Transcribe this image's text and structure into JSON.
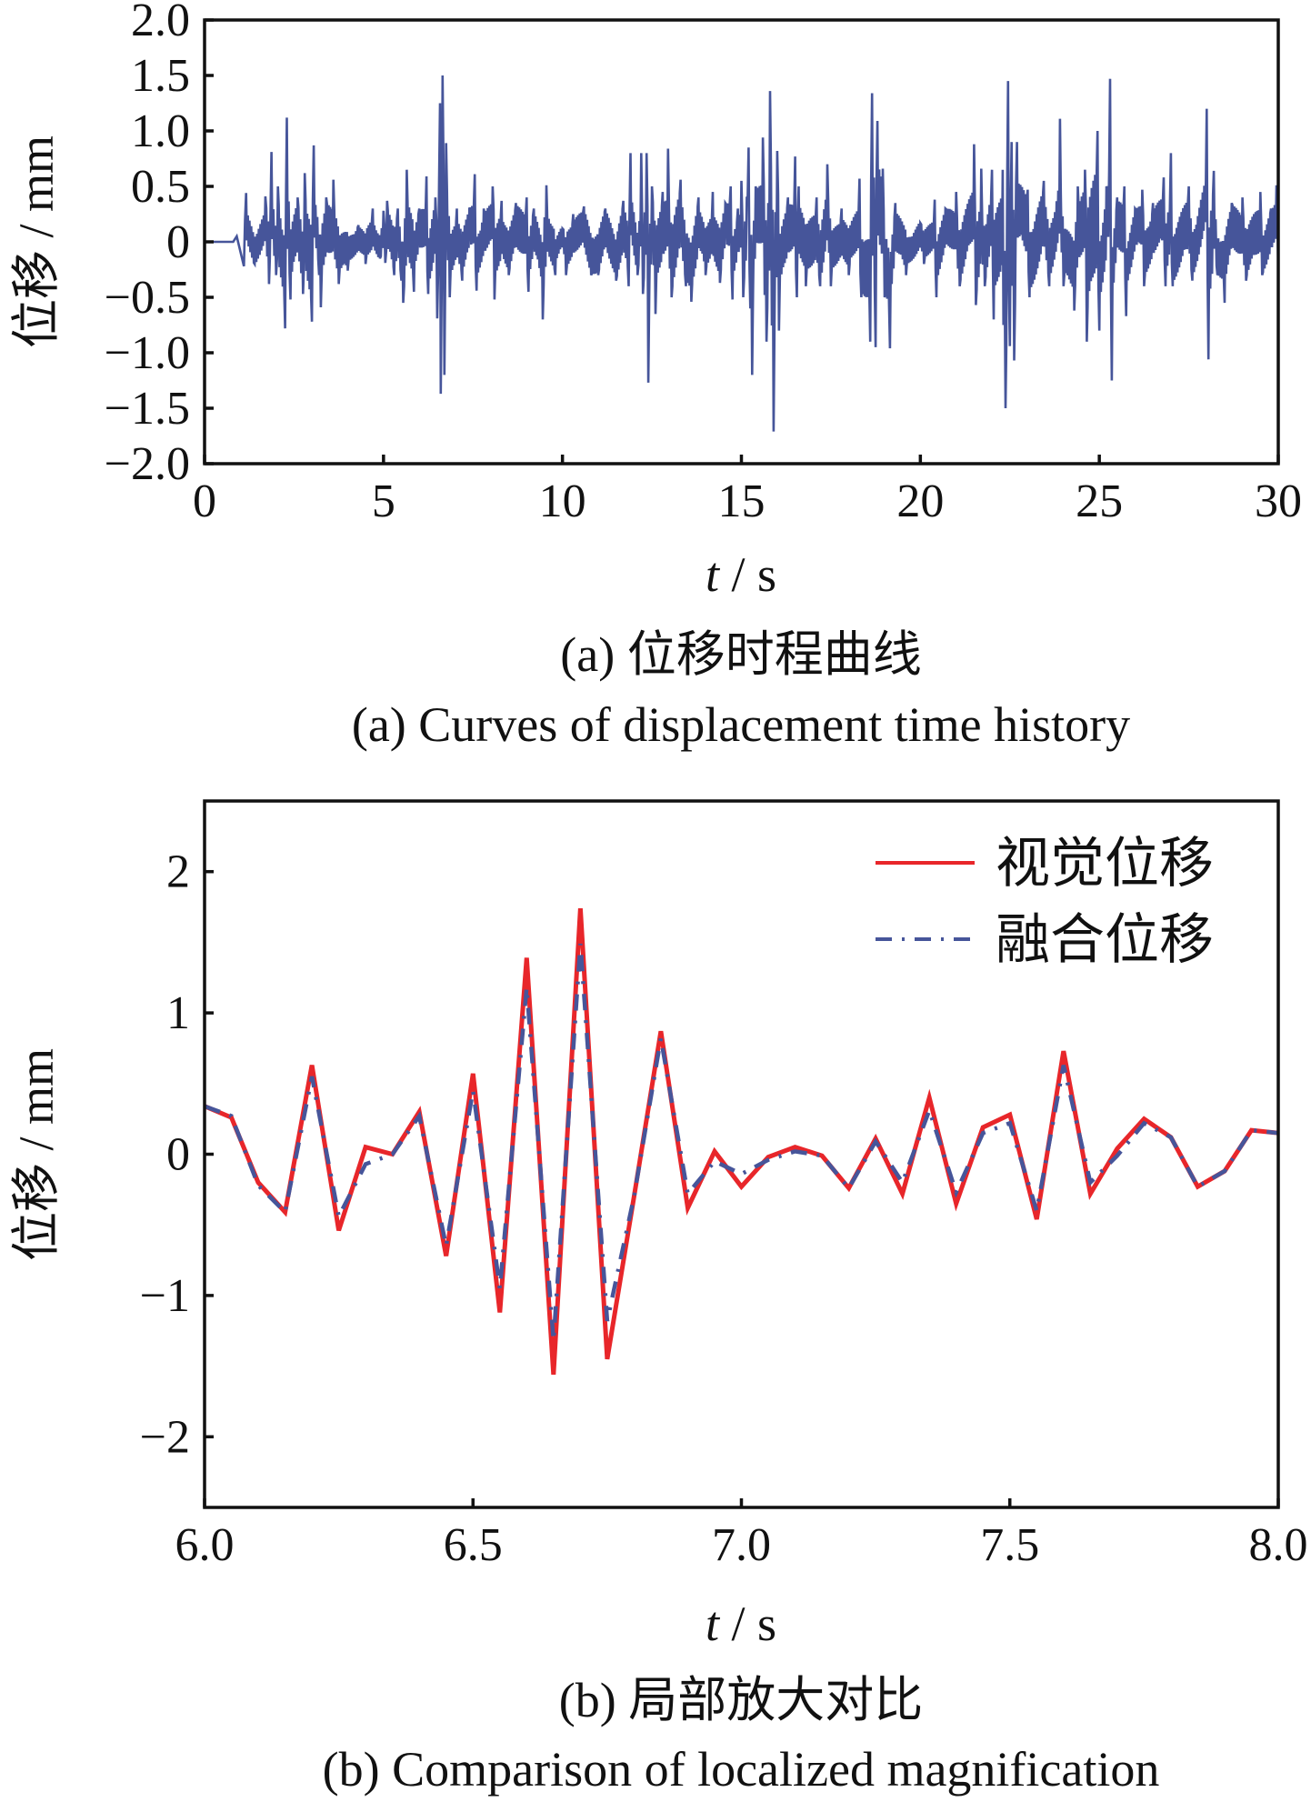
{
  "chart_data": [
    {
      "type": "line",
      "xlabel_var": "t",
      "xlabel_unit": " / s",
      "ylabel": "位移 / mm",
      "xlim": [
        0,
        30
      ],
      "ylim": [
        -2.0,
        2.0
      ],
      "xticks": [
        0,
        5,
        10,
        15,
        20,
        25,
        30
      ],
      "xtick_labels": [
        "0",
        "5",
        "10",
        "15",
        "20",
        "25",
        "30"
      ],
      "yticks": [
        2.0,
        1.5,
        1.0,
        0.5,
        0,
        -0.5,
        -1.0,
        -1.5,
        -2.0
      ],
      "ytick_labels": [
        "2.0",
        "1.5",
        "1.0",
        "0.5",
        "0",
        "−0.5",
        "−1.0",
        "−1.5",
        "−2.0"
      ],
      "grid": false,
      "color": "#46559a",
      "caption_cn": "(a)  位移时程曲线",
      "caption_en": "(a)  Curves of displacement time history",
      "series_peaks": [
        [
          0,
          0
        ],
        [
          0.8,
          0
        ],
        [
          0.9,
          0.05
        ],
        [
          1.1,
          -0.22
        ],
        [
          1.16,
          0.44
        ],
        [
          1.4,
          -0.2
        ],
        [
          1.7,
          0.41
        ],
        [
          1.8,
          -0.38
        ],
        [
          1.87,
          0.81
        ],
        [
          2.0,
          -0.3
        ],
        [
          2.05,
          0.5
        ],
        [
          2.25,
          -0.78
        ],
        [
          2.3,
          1.12
        ],
        [
          2.4,
          -0.52
        ],
        [
          2.6,
          0.4
        ],
        [
          2.75,
          -0.47
        ],
        [
          2.8,
          0.62
        ],
        [
          3.0,
          -0.72
        ],
        [
          3.05,
          0.87
        ],
        [
          3.2,
          -0.3
        ],
        [
          3.25,
          -0.59
        ],
        [
          3.4,
          0.4
        ],
        [
          3.6,
          0.56
        ],
        [
          3.75,
          -0.38
        ],
        [
          4.0,
          -0.26
        ],
        [
          4.3,
          0.15
        ],
        [
          4.5,
          -0.2
        ],
        [
          4.7,
          0.3
        ],
        [
          4.9,
          -0.15
        ],
        [
          5.0,
          0.28
        ],
        [
          5.05,
          -0.19
        ],
        [
          5.1,
          0.37
        ],
        [
          5.3,
          -0.3
        ],
        [
          5.4,
          0.3
        ],
        [
          5.5,
          -0.35
        ],
        [
          5.55,
          -0.55
        ],
        [
          5.65,
          0.65
        ],
        [
          5.85,
          -0.45
        ],
        [
          6.0,
          0.3
        ],
        [
          6.2,
          0.59
        ],
        [
          6.25,
          -0.47
        ],
        [
          6.45,
          0.4
        ],
        [
          6.5,
          -0.69
        ],
        [
          6.58,
          1.25
        ],
        [
          6.6,
          -1.37
        ],
        [
          6.65,
          1.5
        ],
        [
          6.7,
          -1.2
        ],
        [
          6.75,
          0.89
        ],
        [
          6.85,
          -0.5
        ],
        [
          7.05,
          0.3
        ],
        [
          7.2,
          -0.35
        ],
        [
          7.4,
          0.3
        ],
        [
          7.55,
          0.61
        ],
        [
          7.6,
          -0.44
        ],
        [
          7.8,
          0.3
        ],
        [
          8.05,
          0.5
        ],
        [
          8.1,
          -0.52
        ],
        [
          8.3,
          0.37
        ],
        [
          8.5,
          -0.3
        ],
        [
          8.7,
          0.35
        ],
        [
          9.0,
          0.4
        ],
        [
          9.05,
          -0.45
        ],
        [
          9.2,
          0.3
        ],
        [
          9.45,
          -0.7
        ],
        [
          9.55,
          0.51
        ],
        [
          9.8,
          -0.3
        ],
        [
          10.0,
          0.12
        ],
        [
          10.1,
          -0.3
        ],
        [
          10.3,
          0.25
        ],
        [
          10.6,
          0.32
        ],
        [
          10.8,
          -0.3
        ],
        [
          11.0,
          -0.3
        ],
        [
          11.2,
          0.3
        ],
        [
          11.5,
          -0.35
        ],
        [
          11.7,
          0.37
        ],
        [
          11.85,
          -0.4
        ],
        [
          11.9,
          0.8
        ],
        [
          12.1,
          -0.3
        ],
        [
          12.2,
          0.8
        ],
        [
          12.25,
          -0.47
        ],
        [
          12.35,
          0.8
        ],
        [
          12.4,
          -1.27
        ],
        [
          12.5,
          0.5
        ],
        [
          12.6,
          -0.65
        ],
        [
          12.8,
          0.45
        ],
        [
          12.95,
          0.84
        ],
        [
          13.05,
          -0.5
        ],
        [
          13.3,
          0.56
        ],
        [
          13.45,
          -0.4
        ],
        [
          13.6,
          -0.54
        ],
        [
          13.8,
          0.4
        ],
        [
          14.0,
          -0.3
        ],
        [
          14.2,
          0.45
        ],
        [
          14.4,
          -0.37
        ],
        [
          14.55,
          0.35
        ],
        [
          14.7,
          0.5
        ],
        [
          14.75,
          -0.52
        ],
        [
          14.9,
          0.3
        ],
        [
          15.0,
          0.55
        ],
        [
          15.05,
          -0.5
        ],
        [
          15.15,
          0.4
        ],
        [
          15.2,
          0.85
        ],
        [
          15.25,
          -0.6
        ],
        [
          15.3,
          -1.2
        ],
        [
          15.4,
          0.5
        ],
        [
          15.6,
          0.94
        ],
        [
          15.7,
          -0.9
        ],
        [
          15.8,
          1.36
        ],
        [
          15.9,
          -1.71
        ],
        [
          16.0,
          0.82
        ],
        [
          16.05,
          -0.8
        ],
        [
          16.3,
          0.4
        ],
        [
          16.5,
          0.77
        ],
        [
          16.55,
          -0.5
        ],
        [
          16.6,
          0.5
        ],
        [
          16.8,
          -0.4
        ],
        [
          17.1,
          0.4
        ],
        [
          17.2,
          -0.4
        ],
        [
          17.4,
          0.7
        ],
        [
          17.5,
          -0.4
        ],
        [
          17.8,
          0.3
        ],
        [
          18.0,
          -0.3
        ],
        [
          18.3,
          0.57
        ],
        [
          18.35,
          -0.5
        ],
        [
          18.6,
          -0.9
        ],
        [
          18.65,
          1.34
        ],
        [
          18.75,
          -0.95
        ],
        [
          18.8,
          1.09
        ],
        [
          18.95,
          0.66
        ],
        [
          19.0,
          -0.5
        ],
        [
          19.15,
          -0.96
        ],
        [
          19.3,
          0.35
        ],
        [
          19.6,
          -0.3
        ],
        [
          20.0,
          0.17
        ],
        [
          20.1,
          -0.2
        ],
        [
          20.4,
          0.38
        ],
        [
          20.45,
          -0.5
        ],
        [
          20.7,
          0.3
        ],
        [
          21.0,
          0.45
        ],
        [
          21.1,
          -0.4
        ],
        [
          21.5,
          0.88
        ],
        [
          21.55,
          -0.57
        ],
        [
          21.7,
          0.66
        ],
        [
          21.8,
          -0.4
        ],
        [
          22.0,
          0.65
        ],
        [
          22.05,
          -0.7
        ],
        [
          22.3,
          0.65
        ],
        [
          22.32,
          -0.75
        ],
        [
          22.38,
          -1.5
        ],
        [
          22.45,
          1.45
        ],
        [
          22.5,
          -0.94
        ],
        [
          22.55,
          0.9
        ],
        [
          22.62,
          -1.07
        ],
        [
          22.7,
          0.9
        ],
        [
          23.0,
          0.47
        ],
        [
          23.05,
          -0.5
        ],
        [
          23.45,
          0.55
        ],
        [
          23.6,
          -0.4
        ],
        [
          23.9,
          1.11
        ],
        [
          24.0,
          -0.4
        ],
        [
          24.3,
          -0.62
        ],
        [
          24.4,
          0.5
        ],
        [
          24.6,
          0.65
        ],
        [
          24.65,
          -0.9
        ],
        [
          24.95,
          1.0
        ],
        [
          25.0,
          -0.8
        ],
        [
          25.2,
          0.5
        ],
        [
          25.3,
          1.47
        ],
        [
          25.35,
          -1.25
        ],
        [
          25.5,
          0.4
        ],
        [
          25.7,
          0.5
        ],
        [
          25.75,
          -0.67
        ],
        [
          26.0,
          0.3
        ],
        [
          26.2,
          0.47
        ],
        [
          26.25,
          -0.4
        ],
        [
          26.5,
          0.35
        ],
        [
          26.8,
          0.58
        ],
        [
          26.85,
          -0.4
        ],
        [
          27.0,
          0.8
        ],
        [
          27.05,
          -0.4
        ],
        [
          27.5,
          0.5
        ],
        [
          27.6,
          -0.35
        ],
        [
          28.0,
          1.2
        ],
        [
          28.05,
          -1.06
        ],
        [
          28.2,
          0.64
        ],
        [
          28.3,
          -0.3
        ],
        [
          28.5,
          -0.55
        ],
        [
          28.7,
          0.35
        ],
        [
          29.0,
          0.4
        ],
        [
          29.1,
          -0.35
        ],
        [
          29.5,
          0.45
        ],
        [
          29.55,
          -0.3
        ],
        [
          29.8,
          0.3
        ],
        [
          29.95,
          0.51
        ],
        [
          30.0,
          -0.24
        ]
      ]
    },
    {
      "type": "line",
      "xlabel_var": "t",
      "xlabel_unit": " / s",
      "ylabel": "位移 / mm",
      "xlim": [
        6.0,
        8.0
      ],
      "ylim": [
        -2.5,
        2.5
      ],
      "xticks": [
        6.0,
        6.5,
        7.0,
        7.5,
        8.0
      ],
      "xtick_labels": [
        "6.0",
        "6.5",
        "7.0",
        "7.5",
        "8.0"
      ],
      "yticks": [
        2,
        1,
        0,
        -1,
        -2
      ],
      "ytick_labels": [
        "2",
        "1",
        "0",
        "−1",
        "−2"
      ],
      "grid": false,
      "legend_position": "top-right",
      "caption_cn": "(b)  局部放大对比",
      "caption_en": "(b)  Comparison of localized magnification",
      "x": [
        6.0,
        6.05,
        6.1,
        6.15,
        6.2,
        6.25,
        6.3,
        6.35,
        6.4,
        6.45,
        6.5,
        6.55,
        6.6,
        6.65,
        6.7,
        6.75,
        6.8,
        6.85,
        6.9,
        6.95,
        7.0,
        7.05,
        7.1,
        7.15,
        7.2,
        7.25,
        7.3,
        7.35,
        7.4,
        7.45,
        7.5,
        7.55,
        7.6,
        7.65,
        7.7,
        7.75,
        7.8,
        7.85,
        7.9,
        7.95,
        8.0
      ],
      "series": [
        {
          "name": "视觉位移",
          "color": "#e8262a",
          "style": "solid",
          "values": [
            0.34,
            0.26,
            -0.2,
            -0.41,
            0.63,
            -0.54,
            0.05,
            0.0,
            0.3,
            -0.72,
            0.57,
            -1.12,
            1.39,
            -1.56,
            1.74,
            -1.45,
            -0.3,
            0.87,
            -0.38,
            0.02,
            -0.23,
            -0.02,
            0.05,
            -0.01,
            -0.24,
            0.11,
            -0.28,
            0.4,
            -0.35,
            0.19,
            0.28,
            -0.46,
            0.73,
            -0.28,
            0.04,
            0.25,
            0.12,
            -0.23,
            -0.12,
            0.17,
            0.15
          ]
        },
        {
          "name": "融合位移",
          "color": "#46559a",
          "style": "dash-dot",
          "values": [
            0.34,
            0.27,
            -0.22,
            -0.41,
            0.55,
            -0.44,
            -0.07,
            0.0,
            0.27,
            -0.65,
            0.45,
            -0.95,
            1.18,
            -1.32,
            1.49,
            -1.18,
            -0.3,
            0.82,
            -0.28,
            -0.05,
            -0.14,
            -0.04,
            0.02,
            -0.01,
            -0.24,
            0.09,
            -0.2,
            0.31,
            -0.27,
            0.15,
            0.22,
            -0.4,
            0.63,
            -0.2,
            -0.01,
            0.22,
            0.12,
            -0.23,
            -0.12,
            0.17,
            0.15
          ]
        }
      ]
    }
  ]
}
